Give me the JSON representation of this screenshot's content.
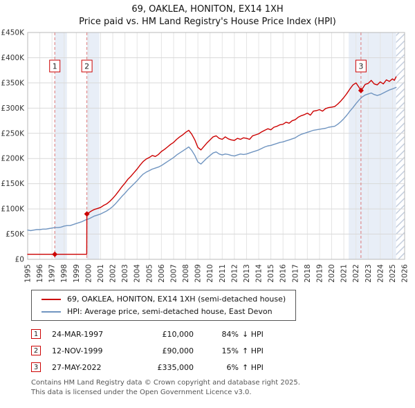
{
  "page": {
    "title": "69, OAKLEA, HONITON, EX14 1XH",
    "subtitle": "Price paid vs. HM Land Registry's House Price Index (HPI)"
  },
  "chart_data": {
    "type": "line",
    "title": "69, OAKLEA, HONITON, EX14 1XH",
    "subtitle": "Price paid vs. HM Land Registry's House Price Index (HPI)",
    "x_range": [
      1995,
      2026
    ],
    "y_range": [
      0,
      450
    ],
    "y_unit": "thousands of pounds",
    "x_ticks": [
      1995,
      1996,
      1997,
      1998,
      1999,
      2000,
      2001,
      2002,
      2003,
      2004,
      2005,
      2006,
      2007,
      2008,
      2009,
      2010,
      2011,
      2012,
      2013,
      2014,
      2015,
      2016,
      2017,
      2018,
      2019,
      2020,
      2021,
      2022,
      2023,
      2024,
      2025,
      2026
    ],
    "y_ticks": [
      0,
      50,
      100,
      150,
      200,
      250,
      300,
      350,
      400,
      450
    ],
    "y_tick_labels": [
      "£0",
      "£50K",
      "£100K",
      "£150K",
      "£200K",
      "£250K",
      "£300K",
      "£350K",
      "£400K",
      "£450K"
    ],
    "grid": true,
    "legend_position": "bottom",
    "colors": {
      "price_paid": "#cc0000",
      "hpi": "#6f94c0",
      "band": "#e8eef7",
      "grid_v": "#e4e4e4",
      "grid_h": "#d9d9d9",
      "border": "#b8b8b8",
      "marker_dash": "#dd7777",
      "hatch_line": "#c4cede"
    },
    "shaded_regions": [
      [
        1997.23,
        1998.23
      ],
      [
        1999.87,
        2000.9
      ],
      [
        2021.4,
        2025.3
      ]
    ],
    "hatch_region": [
      2025.3,
      2026
    ],
    "markers": [
      {
        "label": "1",
        "x": 1997.23,
        "y": 10
      },
      {
        "label": "2",
        "x": 1999.87,
        "y": 90
      },
      {
        "label": "3",
        "x": 2022.41,
        "y": 335
      }
    ],
    "series": [
      {
        "name": "69, OAKLEA, HONITON, EX14 1XH (semi-detached house)",
        "color": "#cc0000",
        "points": [
          [
            1995,
            10
          ],
          [
            1995.5,
            10
          ],
          [
            1996,
            10
          ],
          [
            1996.5,
            10
          ],
          [
            1997,
            10
          ],
          [
            1997.23,
            10
          ],
          [
            1997.5,
            10
          ],
          [
            1998,
            10
          ],
          [
            1998.5,
            10
          ],
          [
            1999,
            10
          ],
          [
            1999.5,
            10
          ],
          [
            1999.86,
            10
          ],
          [
            1999.87,
            90
          ],
          [
            2000,
            92
          ],
          [
            2000.25,
            96
          ],
          [
            2000.5,
            99
          ],
          [
            2000.75,
            101
          ],
          [
            2001,
            103
          ],
          [
            2001.25,
            107
          ],
          [
            2001.5,
            110
          ],
          [
            2001.75,
            115
          ],
          [
            2002,
            121
          ],
          [
            2002.25,
            128
          ],
          [
            2002.5,
            136
          ],
          [
            2002.75,
            144
          ],
          [
            2003,
            151
          ],
          [
            2003.25,
            159
          ],
          [
            2003.5,
            165
          ],
          [
            2003.75,
            172
          ],
          [
            2004,
            179
          ],
          [
            2004.25,
            187
          ],
          [
            2004.5,
            194
          ],
          [
            2004.75,
            199
          ],
          [
            2005,
            202
          ],
          [
            2005.25,
            206
          ],
          [
            2005.5,
            204
          ],
          [
            2005.75,
            208
          ],
          [
            2006,
            214
          ],
          [
            2006.25,
            218
          ],
          [
            2006.5,
            223
          ],
          [
            2006.75,
            228
          ],
          [
            2007,
            232
          ],
          [
            2007.25,
            238
          ],
          [
            2007.5,
            243
          ],
          [
            2007.75,
            247
          ],
          [
            2008,
            252
          ],
          [
            2008.25,
            256
          ],
          [
            2008.5,
            248
          ],
          [
            2008.75,
            237
          ],
          [
            2009,
            222
          ],
          [
            2009.25,
            217
          ],
          [
            2009.5,
            224
          ],
          [
            2009.75,
            231
          ],
          [
            2010,
            237
          ],
          [
            2010.25,
            243
          ],
          [
            2010.5,
            245
          ],
          [
            2010.75,
            240
          ],
          [
            2011,
            238
          ],
          [
            2011.25,
            243
          ],
          [
            2011.5,
            239
          ],
          [
            2011.75,
            237
          ],
          [
            2012,
            236
          ],
          [
            2012.25,
            240
          ],
          [
            2012.5,
            238
          ],
          [
            2012.75,
            241
          ],
          [
            2013,
            240
          ],
          [
            2013.25,
            238
          ],
          [
            2013.5,
            245
          ],
          [
            2013.75,
            247
          ],
          [
            2014,
            249
          ],
          [
            2014.25,
            253
          ],
          [
            2014.5,
            256
          ],
          [
            2014.75,
            259
          ],
          [
            2015,
            257
          ],
          [
            2015.25,
            262
          ],
          [
            2015.5,
            264
          ],
          [
            2015.75,
            267
          ],
          [
            2016,
            268
          ],
          [
            2016.25,
            272
          ],
          [
            2016.5,
            270
          ],
          [
            2016.75,
            275
          ],
          [
            2017,
            277
          ],
          [
            2017.25,
            282
          ],
          [
            2017.5,
            285
          ],
          [
            2017.75,
            287
          ],
          [
            2018,
            290
          ],
          [
            2018.25,
            286
          ],
          [
            2018.5,
            294
          ],
          [
            2018.75,
            295
          ],
          [
            2019,
            297
          ],
          [
            2019.25,
            294
          ],
          [
            2019.5,
            299
          ],
          [
            2019.75,
            301
          ],
          [
            2020,
            302
          ],
          [
            2020.25,
            303
          ],
          [
            2020.5,
            308
          ],
          [
            2020.75,
            314
          ],
          [
            2021,
            321
          ],
          [
            2021.25,
            329
          ],
          [
            2021.5,
            338
          ],
          [
            2021.75,
            346
          ],
          [
            2022,
            350
          ],
          [
            2022.2,
            343
          ],
          [
            2022.41,
            335
          ],
          [
            2022.6,
            341
          ],
          [
            2022.75,
            347
          ],
          [
            2023,
            349
          ],
          [
            2023.25,
            355
          ],
          [
            2023.5,
            348
          ],
          [
            2023.75,
            346
          ],
          [
            2024,
            352
          ],
          [
            2024.25,
            348
          ],
          [
            2024.5,
            356
          ],
          [
            2024.75,
            353
          ],
          [
            2025,
            358
          ],
          [
            2025.15,
            355
          ],
          [
            2025.3,
            362
          ]
        ]
      },
      {
        "name": "HPI: Average price, semi-detached house, East Devon",
        "color": "#6f94c0",
        "points": [
          [
            1995,
            58
          ],
          [
            1995.25,
            57
          ],
          [
            1995.5,
            58
          ],
          [
            1995.75,
            59
          ],
          [
            1996,
            59
          ],
          [
            1996.25,
            60
          ],
          [
            1996.5,
            60
          ],
          [
            1996.75,
            61
          ],
          [
            1997,
            62
          ],
          [
            1997.25,
            63
          ],
          [
            1997.5,
            63
          ],
          [
            1997.75,
            64
          ],
          [
            1998,
            66
          ],
          [
            1998.25,
            67
          ],
          [
            1998.5,
            67
          ],
          [
            1998.75,
            69
          ],
          [
            1999,
            71
          ],
          [
            1999.25,
            73
          ],
          [
            1999.5,
            75
          ],
          [
            1999.75,
            78
          ],
          [
            2000,
            80
          ],
          [
            2000.25,
            83
          ],
          [
            2000.5,
            86
          ],
          [
            2000.75,
            88
          ],
          [
            2001,
            90
          ],
          [
            2001.25,
            93
          ],
          [
            2001.5,
            96
          ],
          [
            2001.75,
            100
          ],
          [
            2002,
            105
          ],
          [
            2002.25,
            111
          ],
          [
            2002.5,
            118
          ],
          [
            2002.75,
            125
          ],
          [
            2003,
            131
          ],
          [
            2003.25,
            138
          ],
          [
            2003.5,
            144
          ],
          [
            2003.75,
            150
          ],
          [
            2004,
            156
          ],
          [
            2004.25,
            163
          ],
          [
            2004.5,
            169
          ],
          [
            2004.75,
            173
          ],
          [
            2005,
            176
          ],
          [
            2005.25,
            179
          ],
          [
            2005.5,
            181
          ],
          [
            2005.75,
            183
          ],
          [
            2006,
            186
          ],
          [
            2006.25,
            190
          ],
          [
            2006.5,
            194
          ],
          [
            2006.75,
            198
          ],
          [
            2007,
            202
          ],
          [
            2007.25,
            207
          ],
          [
            2007.5,
            211
          ],
          [
            2007.75,
            215
          ],
          [
            2008,
            219
          ],
          [
            2008.25,
            223
          ],
          [
            2008.5,
            216
          ],
          [
            2008.75,
            206
          ],
          [
            2009,
            193
          ],
          [
            2009.25,
            189
          ],
          [
            2009.5,
            195
          ],
          [
            2009.75,
            201
          ],
          [
            2010,
            206
          ],
          [
            2010.25,
            211
          ],
          [
            2010.5,
            213
          ],
          [
            2010.75,
            209
          ],
          [
            2011,
            207
          ],
          [
            2011.25,
            209
          ],
          [
            2011.5,
            208
          ],
          [
            2011.75,
            206
          ],
          [
            2012,
            205
          ],
          [
            2012.25,
            207
          ],
          [
            2012.5,
            209
          ],
          [
            2012.75,
            208
          ],
          [
            2013,
            209
          ],
          [
            2013.25,
            211
          ],
          [
            2013.5,
            213
          ],
          [
            2013.75,
            215
          ],
          [
            2014,
            217
          ],
          [
            2014.25,
            220
          ],
          [
            2014.5,
            223
          ],
          [
            2014.75,
            225
          ],
          [
            2015,
            226
          ],
          [
            2015.25,
            228
          ],
          [
            2015.5,
            230
          ],
          [
            2015.75,
            232
          ],
          [
            2016,
            233
          ],
          [
            2016.25,
            235
          ],
          [
            2016.5,
            237
          ],
          [
            2016.75,
            239
          ],
          [
            2017,
            241
          ],
          [
            2017.25,
            245
          ],
          [
            2017.5,
            248
          ],
          [
            2017.75,
            250
          ],
          [
            2018,
            252
          ],
          [
            2018.25,
            254
          ],
          [
            2018.5,
            256
          ],
          [
            2018.75,
            257
          ],
          [
            2019,
            258
          ],
          [
            2019.25,
            259
          ],
          [
            2019.5,
            260
          ],
          [
            2019.75,
            262
          ],
          [
            2020,
            263
          ],
          [
            2020.25,
            264
          ],
          [
            2020.5,
            268
          ],
          [
            2020.75,
            273
          ],
          [
            2021,
            279
          ],
          [
            2021.25,
            286
          ],
          [
            2021.5,
            294
          ],
          [
            2021.75,
            301
          ],
          [
            2022,
            309
          ],
          [
            2022.25,
            316
          ],
          [
            2022.5,
            322
          ],
          [
            2022.75,
            326
          ],
          [
            2023,
            328
          ],
          [
            2023.25,
            330
          ],
          [
            2023.5,
            327
          ],
          [
            2023.75,
            325
          ],
          [
            2024,
            327
          ],
          [
            2024.25,
            330
          ],
          [
            2024.5,
            333
          ],
          [
            2024.75,
            336
          ],
          [
            2025,
            338
          ],
          [
            2025.3,
            341
          ]
        ]
      }
    ]
  },
  "transactions": [
    {
      "num": "1",
      "date": "24-MAR-1997",
      "price": "£10,000",
      "pct": "84%",
      "rel": "↓ HPI"
    },
    {
      "num": "2",
      "date": "12-NOV-1999",
      "price": "£90,000",
      "pct": "15%",
      "rel": "↑ HPI"
    },
    {
      "num": "3",
      "date": "27-MAY-2022",
      "price": "£335,000",
      "pct": "6%",
      "rel": "↑ HPI"
    }
  ],
  "footer": {
    "line1": "Contains HM Land Registry data © Crown copyright and database right 2025.",
    "line2": "This data is licensed under the Open Government Licence v3.0."
  }
}
